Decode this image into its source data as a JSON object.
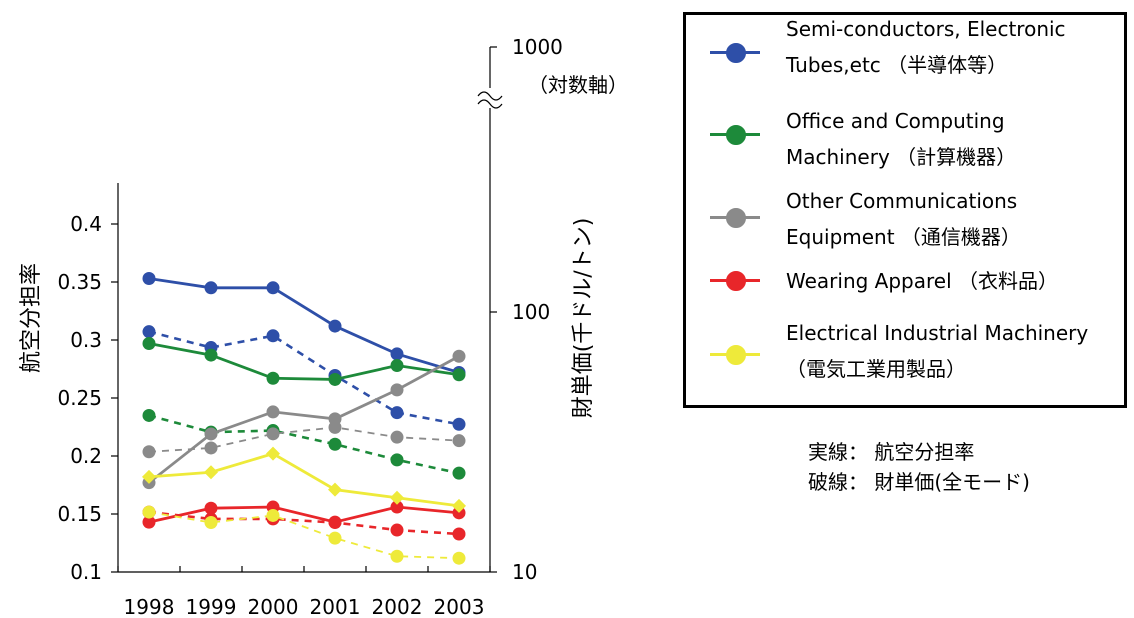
{
  "chart_data": {
    "type": "line",
    "categories": [
      "1998",
      "1999",
      "2000",
      "2001",
      "2002",
      "2003"
    ],
    "left_axis": {
      "label": "航空分担率",
      "ticks": [
        "0.1",
        "0.15",
        "0.2",
        "0.25",
        "0.3",
        "0.35",
        "0.4"
      ],
      "ylim": [
        0.1,
        0.43
      ]
    },
    "right_axis": {
      "label": "財単価(千ドル/トン)",
      "ticks": [
        "10",
        "100",
        "1000"
      ],
      "scale": "log",
      "note": "（対数軸）"
    },
    "series": [
      {
        "name": "Semi-conductors, Electronic Tubes,etc （半導体等）",
        "legend_lines": [
          "Semi-conductors, Electronic",
          "Tubes,etc （半導体等）"
        ],
        "color": "#2e4fa8",
        "solid": [
          0.353,
          0.345,
          0.345,
          0.312,
          0.288,
          0.272
        ],
        "dashed": [
          84,
          73,
          81,
          57,
          41,
          37
        ]
      },
      {
        "name": "Office and Computing Machinery （計算機器）",
        "legend_lines": [
          "Office and Computing",
          "Machinery （計算機器）"
        ],
        "color": "#1d8a3a",
        "solid": [
          0.297,
          0.287,
          0.267,
          0.266,
          0.278,
          0.27
        ],
        "dashed": [
          40,
          34.5,
          35,
          31,
          27,
          24
        ]
      },
      {
        "name": "Other Communications Equipment （通信機器）",
        "legend_lines": [
          "Other Communications",
          "Equipment （通信機器）"
        ],
        "color": "#8a8a8a",
        "solid": [
          0.177,
          0.219,
          0.238,
          0.232,
          0.257,
          0.286
        ],
        "dashed": [
          29,
          30,
          34,
          36,
          33,
          32
        ]
      },
      {
        "name": "Wearing Apparel （衣料品）",
        "legend_lines": [
          "Wearing Apparel （衣料品）"
        ],
        "color": "#e8262a",
        "solid": [
          0.143,
          0.155,
          0.156,
          0.143,
          0.156,
          0.151
        ],
        "dashed": [
          17,
          16,
          16,
          15.5,
          14.5,
          14
        ]
      },
      {
        "name": "Electrical Industrial Machinery （電気工業用製品）",
        "legend_lines": [
          "Electrical Industrial Machinery",
          "（電気工業用製品）"
        ],
        "color": "#eeea3a",
        "solid": [
          0.182,
          0.186,
          0.202,
          0.171,
          0.164,
          0.157
        ],
        "dashed": [
          17,
          15.5,
          16.5,
          13.5,
          11.5,
          11.3
        ]
      }
    ],
    "notes": [
      "実線： 航空分担率",
      "破線： 財単価(全モード)"
    ]
  }
}
